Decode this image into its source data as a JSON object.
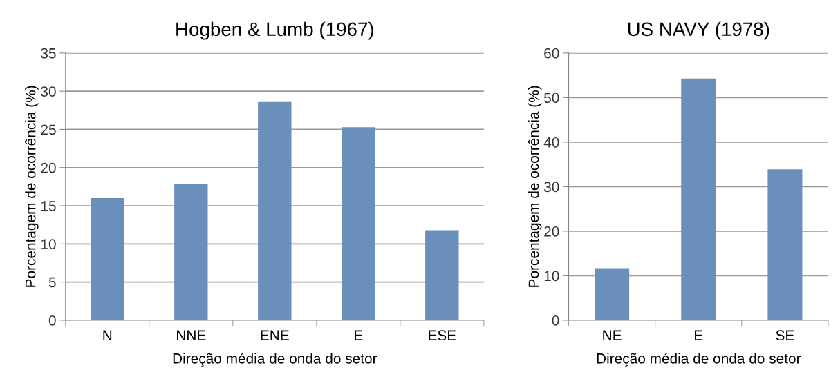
{
  "chart_data": [
    {
      "type": "bar",
      "title": "Hogben & Lumb (1967)",
      "xlabel": "Direção média de onda do setor",
      "ylabel": "Porcentagem de ocorrência (%)",
      "categories": [
        "N",
        "NNE",
        "ENE",
        "E",
        "ESE"
      ],
      "values": [
        16,
        17.9,
        28.6,
        25.3,
        11.8
      ],
      "color": "#6a8fba",
      "ylim": [
        0,
        35
      ],
      "yticks": [
        0,
        5,
        10,
        15,
        20,
        25,
        30,
        35
      ],
      "grid": "y"
    },
    {
      "type": "bar",
      "title": "US NAVY (1978)",
      "xlabel": "Direção média de onda do setor",
      "ylabel": "Porcentagem de ocorrência (%)",
      "categories": [
        "NE",
        "E",
        "SE"
      ],
      "values": [
        11.7,
        54.3,
        33.9
      ],
      "color": "#6a8fba",
      "ylim": [
        0,
        60
      ],
      "yticks": [
        0,
        10,
        20,
        30,
        40,
        50,
        60
      ],
      "grid": "y"
    }
  ]
}
